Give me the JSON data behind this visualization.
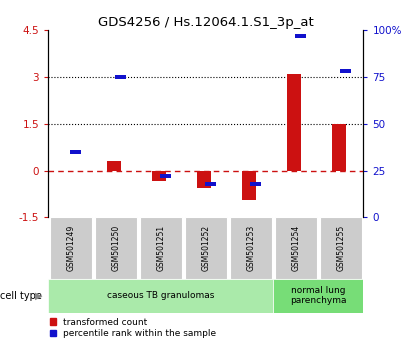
{
  "title": "GDS4256 / Hs.12064.1.S1_3p_at",
  "samples": [
    "GSM501249",
    "GSM501250",
    "GSM501251",
    "GSM501252",
    "GSM501253",
    "GSM501254",
    "GSM501255"
  ],
  "red_values": [
    -0.02,
    0.3,
    -0.35,
    -0.55,
    -0.95,
    3.1,
    1.48
  ],
  "blue_values_pct": [
    35,
    75,
    22,
    18,
    18,
    97,
    78
  ],
  "red_color": "#cc1111",
  "blue_color": "#1111cc",
  "ylim_left": [
    -1.5,
    4.5
  ],
  "yticks_left": [
    -1.5,
    0,
    1.5,
    3.0,
    4.5
  ],
  "ytick_labels_left": [
    "-1.5",
    "0",
    "1.5",
    "3",
    "4.5"
  ],
  "yticks_right": [
    0,
    25,
    50,
    75,
    100
  ],
  "ytick_labels_right": [
    "0",
    "25",
    "50",
    "75",
    "100%"
  ],
  "hlines": [
    1.5,
    3.0
  ],
  "zero_line": 0.0,
  "cell_type_groups": [
    {
      "label": "caseous TB granulomas",
      "start": 0,
      "end": 5,
      "color": "#aaeaaa"
    },
    {
      "label": "normal lung\nparenchyma",
      "start": 5,
      "end": 7,
      "color": "#77dd77"
    }
  ],
  "legend_items": [
    {
      "label": "transformed count",
      "color": "#cc1111"
    },
    {
      "label": "percentile rank within the sample",
      "color": "#1111cc"
    }
  ],
  "cell_type_label": "cell type",
  "bar_width": 0.28,
  "background_color": "#ffffff"
}
